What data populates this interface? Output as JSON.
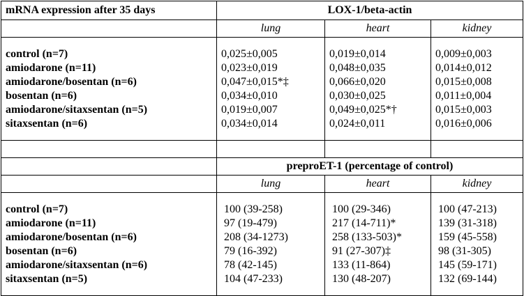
{
  "header_label": "mRNA expression after 35 days",
  "lox": {
    "title": "LOX-1/beta-actin",
    "tissues": [
      "lung",
      "heart",
      "kidney"
    ],
    "rows": [
      {
        "group": "control (n=7)",
        "lung": "0,025±0,005",
        "heart": "0,019±0,014",
        "kidney": "0,009±0,003"
      },
      {
        "group": "amiodarone (n=11)",
        "lung": "0,023±0,019",
        "heart": "0,048±0,035",
        "kidney": "0,014±0,012"
      },
      {
        "group": "amiodarone/bosentan (n=6)",
        "lung": "0,047±0,015*‡",
        "heart": "0,066±0,020",
        "kidney": "0,015±0,008"
      },
      {
        "group": "bosentan (n=6)",
        "lung": "0,034±0,010",
        "heart": "0,030±0,025",
        "kidney": "0,011±0,004"
      },
      {
        "group": "amiodarone/sitaxsentan (n=5)",
        "lung": "0,019±0,007",
        "heart": "0,049±0,025*†",
        "kidney": "0,015±0,003"
      },
      {
        "group": "sitaxsentan (n=6)",
        "lung": "0,034±0,014",
        "heart": "0,024±0,011",
        "kidney": "0,016±0,006"
      }
    ]
  },
  "prepro": {
    "title": "preproET-1 (percentage of control)",
    "tissues": [
      "lung",
      "heart",
      "kidney"
    ],
    "rows": [
      {
        "group": "control (n=7)",
        "lung": "100 (39-258)",
        "heart": "100 (29-346)",
        "kidney": "100 (47-213)"
      },
      {
        "group": "amiodarone (n=11)",
        "lung": "97 (19-479)",
        "heart": "217 (14-711)*",
        "kidney": "139 (31-318)"
      },
      {
        "group": "amiodarone/bosentan (n=6)",
        "lung": "208 (34-1273)",
        "heart": "258 (133-503)*",
        "kidney": "159 (45-558)"
      },
      {
        "group": "bosentan (n=6)",
        "lung": "79 (16-392)",
        "heart": "91 (27-307)‡",
        "kidney": "98 (31-305)"
      },
      {
        "group": "amiodarone/sitaxsentan (n=6)",
        "lung": "78 (42-145)",
        "heart": "133 (11-864)",
        "kidney": "145 (59-171)"
      },
      {
        "group": "sitaxsentan (n=5)",
        "lung": "104 (47-233)",
        "heart": "130 (48-207)",
        "kidney": "132 (69-144)"
      }
    ]
  }
}
